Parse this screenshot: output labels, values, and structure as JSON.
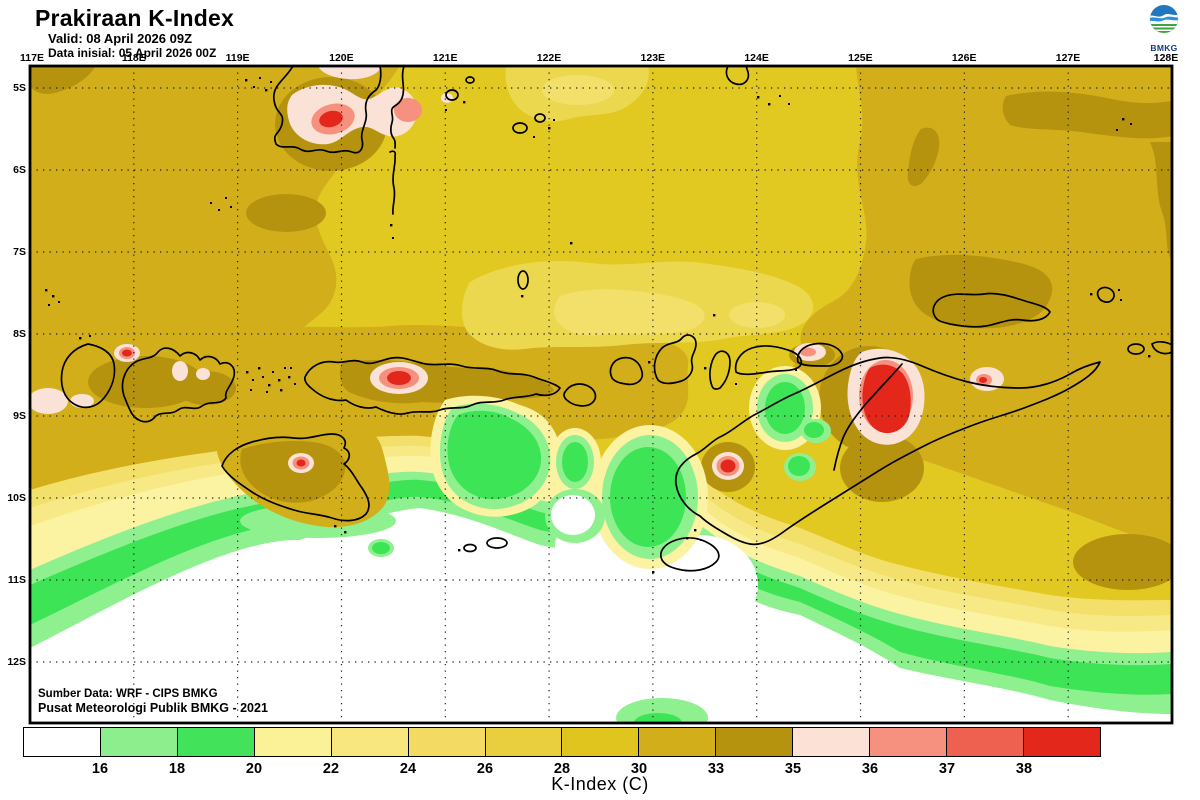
{
  "header": {
    "title": "Prakiraan K-Index",
    "valid_label": "Valid: 08 April 2026 09Z",
    "init_label": "Data inisial: 05 April 2026 00Z"
  },
  "logo": {
    "label": "BMKG"
  },
  "map": {
    "lon_labels": [
      "117E",
      "118E",
      "119E",
      "120E",
      "121E",
      "122E",
      "123E",
      "124E",
      "125E",
      "126E",
      "127E",
      "128E"
    ],
    "lat_labels": [
      "5S",
      "6S",
      "7S",
      "8S",
      "9S",
      "10S",
      "11S",
      "12S"
    ],
    "source_line1": "Sumber Data: WRF - CIPS BMKG",
    "source_line2": "Pusat Meteorologi Publik BMKG - 2021"
  },
  "colorbar": {
    "title": "K-Index (C)",
    "tick_labels": [
      "16",
      "18",
      "20",
      "22",
      "24",
      "26",
      "28",
      "30",
      "33",
      "35",
      "36",
      "37",
      "38"
    ],
    "cell_colors": [
      "#ffffff",
      "#8cee8c",
      "#42e35a",
      "#fbf196",
      "#f8e77f",
      "#f3da62",
      "#e9ce3d",
      "#e0c51e",
      "#d2ae1b",
      "#b6930f",
      "#fbe1d6",
      "#f6917f",
      "#ee6150",
      "#e3271a"
    ]
  },
  "palette": {
    "gold": "#d2ae1b",
    "dark_gold": "#b6930f",
    "yellow": "#e2c922",
    "light_yellow": "#ecd84f",
    "pale_yellow": "#f2e06b",
    "paler_yellow": "#f7ea86",
    "palest_yellow": "#fbf2a2",
    "light_green": "#8ff08f",
    "green": "#3de455",
    "white_zone": "#ffffff",
    "pale_pink": "#fbe2d7",
    "salmon": "#f6917f",
    "dark_salmon": "#ee6150",
    "red": "#e3271a",
    "logo_blue": "#2176be",
    "logo_green": "#3da63b"
  }
}
